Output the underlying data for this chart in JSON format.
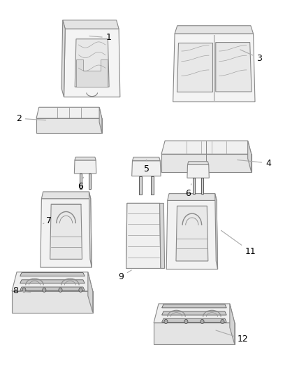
{
  "background_color": "#ffffff",
  "line_color": "#888888",
  "dark_line_color": "#444444",
  "label_color": "#000000",
  "leader_line_color": "#aaaaaa",
  "fig_width": 4.38,
  "fig_height": 5.33,
  "dpi": 100,
  "label_fontsize": 9
}
